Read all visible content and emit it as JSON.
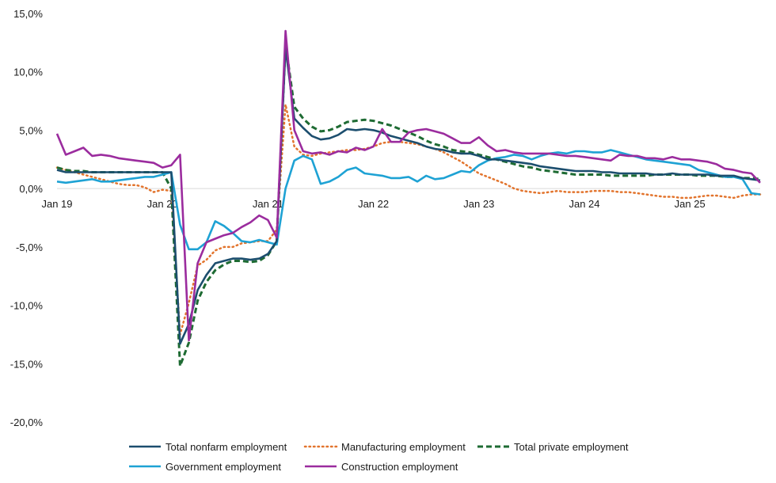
{
  "chart_data": {
    "type": "line",
    "x_labels": [
      "Jan 19",
      "Jan 20",
      "Jan 21",
      "Jan 22",
      "Jan 23",
      "Jan 24",
      "Jan 25"
    ],
    "x_label_months": [
      0,
      12,
      24,
      36,
      48,
      60,
      72
    ],
    "y_ticks": [
      "15,0%",
      "10,0%",
      "5,0%",
      "0,0%",
      "-5,0%",
      "-10,0%",
      "-15,0%",
      "-20,0%"
    ],
    "y_tick_values": [
      15,
      10,
      5,
      0,
      -5,
      -10,
      -15,
      -20
    ],
    "ylim": [
      -20,
      15
    ],
    "months": 81,
    "legend_position": "bottom",
    "series": [
      {
        "name": "Total nonfarm employment",
        "color": "#1c4e6e",
        "style": "solid",
        "values": [
          1.6,
          1.4,
          1.4,
          1.4,
          1.4,
          1.4,
          1.4,
          1.4,
          1.4,
          1.4,
          1.4,
          1.4,
          1.4,
          1.4,
          -13.3,
          -11.6,
          -8.7,
          -7.4,
          -6.4,
          -6.2,
          -6.0,
          -6.0,
          -6.1,
          -6.0,
          -5.6,
          -4.5,
          12.1,
          6.0,
          5.2,
          4.5,
          4.2,
          4.3,
          4.6,
          5.1,
          5.0,
          5.1,
          5.0,
          4.8,
          4.5,
          4.3,
          4.1,
          3.9,
          3.6,
          3.4,
          3.3,
          3.1,
          3.0,
          3.0,
          2.8,
          2.5,
          2.5,
          2.4,
          2.3,
          2.2,
          2.1,
          1.9,
          1.8,
          1.7,
          1.6,
          1.5,
          1.5,
          1.5,
          1.4,
          1.4,
          1.3,
          1.3,
          1.3,
          1.3,
          1.2,
          1.2,
          1.3,
          1.2,
          1.2,
          1.2,
          1.2,
          1.1,
          1.1,
          1.1,
          0.9,
          0.8,
          0.7
        ]
      },
      {
        "name": "Manufacturing employment",
        "color": "#e2742d",
        "style": "dotted",
        "values": [
          1.8,
          1.6,
          1.4,
          1.2,
          1.0,
          0.8,
          0.6,
          0.4,
          0.3,
          0.3,
          0.1,
          -0.3,
          -0.1,
          -0.2,
          -12.5,
          -9.8,
          -6.6,
          -6.1,
          -5.3,
          -5.0,
          -5.0,
          -4.7,
          -4.6,
          -4.5,
          -4.5,
          -3.5,
          7.2,
          3.6,
          2.9,
          2.8,
          3.0,
          3.1,
          3.2,
          3.3,
          3.3,
          3.4,
          3.6,
          3.9,
          4.0,
          4.0,
          3.9,
          3.8,
          3.6,
          3.4,
          3.1,
          2.7,
          2.3,
          1.8,
          1.3,
          1.0,
          0.7,
          0.4,
          0.0,
          -0.2,
          -0.3,
          -0.4,
          -0.3,
          -0.2,
          -0.3,
          -0.3,
          -0.3,
          -0.2,
          -0.2,
          -0.2,
          -0.3,
          -0.3,
          -0.4,
          -0.5,
          -0.6,
          -0.7,
          -0.7,
          -0.8,
          -0.8,
          -0.7,
          -0.6,
          -0.6,
          -0.7,
          -0.8,
          -0.6,
          -0.5,
          -0.5
        ]
      },
      {
        "name": "Total private employment",
        "color": "#1e6b33",
        "style": "dashed",
        "values": [
          1.8,
          1.6,
          1.5,
          1.5,
          1.4,
          1.4,
          1.4,
          1.4,
          1.4,
          1.4,
          1.4,
          1.4,
          1.4,
          0.0,
          -15.2,
          -13.2,
          -9.6,
          -8.0,
          -7.0,
          -6.5,
          -6.2,
          -6.2,
          -6.3,
          -6.2,
          -5.7,
          -4.5,
          12.4,
          7.0,
          6.0,
          5.3,
          4.9,
          5.0,
          5.3,
          5.7,
          5.8,
          5.9,
          5.8,
          5.6,
          5.4,
          5.1,
          4.8,
          4.5,
          4.1,
          3.8,
          3.6,
          3.3,
          3.2,
          3.1,
          2.9,
          2.7,
          2.5,
          2.3,
          2.1,
          1.9,
          1.8,
          1.6,
          1.5,
          1.4,
          1.3,
          1.2,
          1.2,
          1.2,
          1.2,
          1.1,
          1.1,
          1.1,
          1.1,
          1.1,
          1.2,
          1.2,
          1.2,
          1.2,
          1.2,
          1.1,
          1.1,
          1.1,
          1.0,
          1.0,
          0.9,
          0.9,
          0.8
        ]
      },
      {
        "name": "Government employment",
        "color": "#1ea2d4",
        "style": "solid",
        "values": [
          0.6,
          0.5,
          0.6,
          0.7,
          0.8,
          0.6,
          0.6,
          0.7,
          0.8,
          0.9,
          1.0,
          1.0,
          1.2,
          1.4,
          -3.1,
          -5.2,
          -5.2,
          -4.6,
          -2.8,
          -3.2,
          -3.8,
          -4.5,
          -4.6,
          -4.4,
          -4.6,
          -4.8,
          0.0,
          2.4,
          2.8,
          2.5,
          0.4,
          0.6,
          1.0,
          1.6,
          1.8,
          1.3,
          1.2,
          1.1,
          0.9,
          0.9,
          1.0,
          0.6,
          1.1,
          0.8,
          0.9,
          1.2,
          1.5,
          1.4,
          2.0,
          2.4,
          2.6,
          2.7,
          2.9,
          2.8,
          2.5,
          2.8,
          3.0,
          3.1,
          3.0,
          3.2,
          3.2,
          3.1,
          3.1,
          3.3,
          3.1,
          2.9,
          2.7,
          2.5,
          2.4,
          2.3,
          2.2,
          2.1,
          2.0,
          1.6,
          1.4,
          1.2,
          1.0,
          1.0,
          0.8,
          -0.4,
          -0.5
        ]
      },
      {
        "name": "Construction employment",
        "color": "#9b2c9e",
        "style": "solid",
        "values": [
          4.7,
          2.9,
          3.2,
          3.5,
          2.8,
          2.9,
          2.8,
          2.6,
          2.5,
          2.4,
          2.3,
          2.2,
          1.8,
          2.0,
          2.9,
          -13.0,
          -6.4,
          -4.6,
          -4.3,
          -4.0,
          -3.8,
          -3.3,
          -2.9,
          -2.3,
          -2.7,
          -4.2,
          13.5,
          5.0,
          3.2,
          3.0,
          3.1,
          2.9,
          3.2,
          3.1,
          3.5,
          3.3,
          3.6,
          5.1,
          4.0,
          4.0,
          4.8,
          5.0,
          5.1,
          4.9,
          4.7,
          4.3,
          3.9,
          3.9,
          4.4,
          3.7,
          3.2,
          3.3,
          3.1,
          3.0,
          3.0,
          3.0,
          3.0,
          2.9,
          2.8,
          2.8,
          2.7,
          2.6,
          2.5,
          2.4,
          2.9,
          2.8,
          2.8,
          2.6,
          2.6,
          2.5,
          2.7,
          2.5,
          2.5,
          2.4,
          2.3,
          2.1,
          1.7,
          1.6,
          1.4,
          1.3,
          0.5
        ]
      }
    ]
  }
}
